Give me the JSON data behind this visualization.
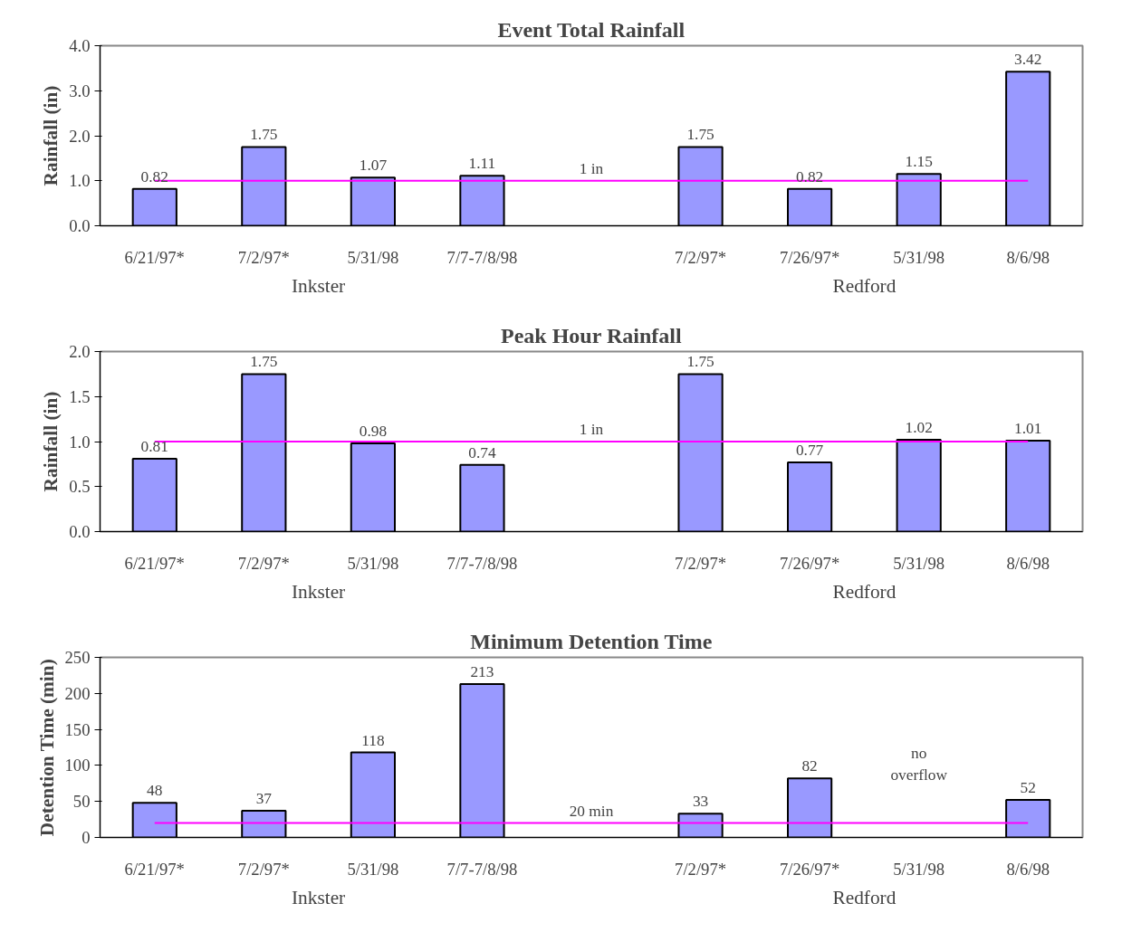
{
  "chart_data": [
    {
      "type": "bar",
      "title": "Event Total Rainfall",
      "ylabel": "Rainfall (in)",
      "categories": [
        "6/21/97*",
        "7/2/97*",
        "5/31/98",
        "7/7-7/8/98",
        null,
        "7/2/97*",
        "7/26/97*",
        "5/31/98",
        "8/6/98"
      ],
      "values": [
        0.82,
        1.75,
        1.07,
        1.11,
        null,
        1.75,
        0.82,
        1.15,
        3.42
      ],
      "color": "#9999ff",
      "data_labels": true,
      "grid": false,
      "ylim": [
        0,
        4
      ],
      "yticks": [
        {
          "value": 0,
          "label": "0.0"
        },
        {
          "value": 1,
          "label": "1.0"
        },
        {
          "value": 2,
          "label": "2.0"
        },
        {
          "value": 3,
          "label": "3.0"
        },
        {
          "value": 4,
          "label": "4.0"
        }
      ],
      "ref_lines": [
        {
          "axis": "y",
          "value": 1,
          "label": "1 in",
          "color": "#ff00ff"
        }
      ],
      "annotations": [
        "Inkster",
        "Redford"
      ]
    },
    {
      "type": "bar",
      "title": "Peak Hour Rainfall",
      "ylabel": "Rainfall (in)",
      "categories": [
        "6/21/97*",
        "7/2/97*",
        "5/31/98",
        "7/7-7/8/98",
        null,
        "7/2/97*",
        "7/26/97*",
        "5/31/98",
        "8/6/98"
      ],
      "values": [
        0.81,
        1.75,
        0.98,
        0.74,
        null,
        1.75,
        0.77,
        1.02,
        1.01
      ],
      "color": "#9999ff",
      "data_labels": true,
      "grid": false,
      "ylim": [
        0,
        2
      ],
      "yticks": [
        {
          "value": 0,
          "label": "0.0"
        },
        {
          "value": 0.5,
          "label": "0.5"
        },
        {
          "value": 1,
          "label": "1.0"
        },
        {
          "value": 1.5,
          "label": "1.5"
        },
        {
          "value": 2,
          "label": "2.0"
        }
      ],
      "ref_lines": [
        {
          "axis": "y",
          "value": 1,
          "label": "1 in",
          "color": "#ff00ff"
        }
      ],
      "annotations": [
        "Inkster",
        "Redford"
      ]
    },
    {
      "type": "bar",
      "title": "Minimum Detention Time",
      "ylabel": "Detention Time (min)",
      "categories": [
        "6/21/97*",
        "7/2/97*",
        "5/31/98",
        "7/7-7/8/98",
        null,
        "7/2/97*",
        "7/26/97*",
        "5/31/98",
        "8/6/98"
      ],
      "values": [
        48,
        37,
        118,
        213,
        null,
        33,
        82,
        null,
        52
      ],
      "value_labels": [
        "48",
        "37",
        "118",
        "213",
        null,
        "33",
        "82",
        "no overflow",
        "52"
      ],
      "color": "#9999ff",
      "grid": false,
      "ylim": [
        0,
        250
      ],
      "yticks": [
        0,
        50,
        100,
        150,
        200,
        250
      ],
      "ref_lines": [
        {
          "axis": "y",
          "value": 20,
          "label": "20 min",
          "color": "#ff00ff"
        }
      ],
      "annotations": [
        "Inkster",
        "Redford"
      ]
    }
  ]
}
